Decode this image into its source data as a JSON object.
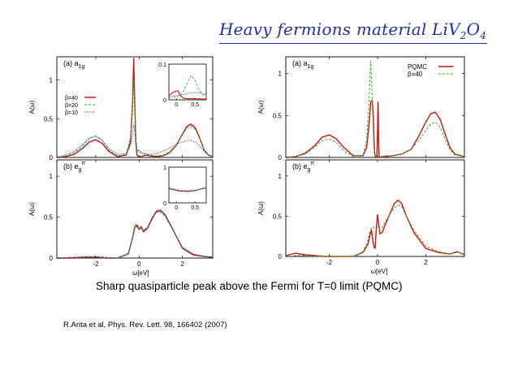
{
  "slide": {
    "title_parts": [
      "Heavy fermions material LiV",
      "2",
      "O",
      "4"
    ],
    "caption": "Sharp quasiparticle peak above the Fermi for T=0 limit (PQMC)",
    "reference": "R.Arita et al, Phys. Rev. Lett. 98, 166402 (2007)"
  },
  "colors": {
    "title": "#1f2fa6",
    "beta40": "#cc1111",
    "beta20": "#22bb22",
    "beta10": "#2233cc",
    "pqmc": "#cc1111"
  },
  "chart_data": [
    {
      "type": "line",
      "panel": "left-top",
      "label": "(a) a",
      "label_sub": "1g",
      "xlabel": "",
      "ylabel": "A(ω)",
      "xlim": [
        -3.8,
        3.4
      ],
      "ylim": [
        0,
        1.3
      ],
      "yticks": [
        "0",
        "0.5",
        "1"
      ],
      "ytick_values": [
        0,
        0.5,
        1
      ],
      "legend": {
        "position": "left-middle",
        "entries": [
          "β=40",
          "β=20",
          "β=10"
        ]
      },
      "series": [
        {
          "name": "β=40",
          "color": "#cc1111",
          "style": "solid",
          "x": [
            -3.8,
            -3.4,
            -3.0,
            -2.6,
            -2.3,
            -2.0,
            -1.7,
            -1.4,
            -1.0,
            -0.6,
            -0.4,
            -0.3,
            -0.25,
            -0.2,
            -0.15,
            -0.1,
            0.0,
            0.1,
            0.3,
            0.5,
            0.8,
            1.1,
            1.4,
            1.7,
            2.0,
            2.2,
            2.4,
            2.6,
            2.8,
            3.0,
            3.2,
            3.4
          ],
          "y": [
            0.0,
            0.01,
            0.04,
            0.12,
            0.2,
            0.23,
            0.18,
            0.08,
            0.01,
            0.03,
            0.2,
            0.7,
            1.28,
            0.7,
            0.2,
            0.03,
            0.005,
            0.01,
            0.03,
            0.02,
            0.01,
            0.02,
            0.06,
            0.15,
            0.3,
            0.4,
            0.43,
            0.38,
            0.25,
            0.1,
            0.03,
            0.01
          ]
        },
        {
          "name": "β=20",
          "color": "#22bb22",
          "style": "dashed",
          "x": [
            -3.8,
            -3.4,
            -3.0,
            -2.6,
            -2.3,
            -2.0,
            -1.7,
            -1.4,
            -1.0,
            -0.6,
            -0.4,
            -0.3,
            -0.25,
            -0.2,
            -0.15,
            -0.1,
            0.0,
            0.1,
            0.3,
            0.5,
            0.8,
            1.1,
            1.4,
            1.7,
            2.0,
            2.2,
            2.4,
            2.6,
            2.8,
            3.0,
            3.2,
            3.4
          ],
          "y": [
            0.0,
            0.02,
            0.06,
            0.15,
            0.25,
            0.28,
            0.22,
            0.1,
            0.02,
            0.04,
            0.25,
            0.65,
            1.0,
            0.65,
            0.25,
            0.08,
            0.1,
            0.06,
            0.04,
            0.03,
            0.02,
            0.03,
            0.07,
            0.16,
            0.29,
            0.38,
            0.4,
            0.36,
            0.24,
            0.1,
            0.03,
            0.01
          ]
        },
        {
          "name": "β=10",
          "color": "#2233cc",
          "style": "dotted",
          "x": [
            -3.8,
            -3.4,
            -3.0,
            -2.6,
            -2.3,
            -2.0,
            -1.7,
            -1.4,
            -1.0,
            -0.6,
            -0.4,
            -0.3,
            -0.25,
            -0.2,
            -0.15,
            -0.1,
            0.0,
            0.1,
            0.3,
            0.5,
            0.8,
            1.1,
            1.4,
            1.7,
            2.0,
            2.2,
            2.4,
            2.6,
            2.8,
            3.0,
            3.2,
            3.4
          ],
          "y": [
            0.0,
            0.03,
            0.08,
            0.17,
            0.25,
            0.27,
            0.22,
            0.12,
            0.04,
            0.05,
            0.15,
            0.3,
            0.42,
            0.35,
            0.2,
            0.1,
            0.08,
            0.06,
            0.05,
            0.04,
            0.05,
            0.08,
            0.12,
            0.17,
            0.2,
            0.22,
            0.22,
            0.2,
            0.15,
            0.08,
            0.03,
            0.01
          ]
        }
      ],
      "inset": {
        "xlim": [
          -0.2,
          0.8
        ],
        "ylim": [
          0,
          0.1
        ],
        "xticks": [
          "0",
          "0.5"
        ],
        "xtick_values": [
          0,
          0.5
        ],
        "yticks": [
          "0",
          "0.1"
        ],
        "ytick_values": [
          0,
          0.1
        ],
        "series": [
          {
            "name": "β=40",
            "color": "#cc1111",
            "style": "solid",
            "x": [
              -0.2,
              -0.1,
              0.0,
              0.05,
              0.1,
              0.2,
              0.3,
              0.5,
              0.7,
              0.8
            ],
            "y": [
              0.012,
              0.02,
              0.025,
              0.025,
              0.012,
              0.004,
              0.003,
              0.003,
              0.002,
              0.002
            ]
          },
          {
            "name": "β=20",
            "color": "#22bb22",
            "style": "dashed",
            "x": [
              -0.2,
              -0.1,
              0.0,
              0.1,
              0.2,
              0.3,
              0.4,
              0.5,
              0.6,
              0.7,
              0.8
            ],
            "y": [
              0.006,
              0.007,
              0.008,
              0.01,
              0.025,
              0.05,
              0.068,
              0.055,
              0.03,
              0.015,
              0.01
            ]
          },
          {
            "name": "β=10",
            "color": "#2233cc",
            "style": "dotted",
            "x": [
              -0.2,
              0.0,
              0.2,
              0.4,
              0.6,
              0.8
            ],
            "y": [
              0.01,
              0.012,
              0.015,
              0.02,
              0.02,
              0.015
            ]
          }
        ]
      }
    },
    {
      "type": "line",
      "panel": "left-bottom",
      "label": "(b) e",
      "label_sub": "g",
      "label_sup": "π",
      "xlabel": "ω[eV]",
      "ylabel": "A(ω)",
      "xlim": [
        -3.8,
        3.4
      ],
      "ylim": [
        0,
        1.2
      ],
      "xticks": [
        "-2",
        "0",
        "2"
      ],
      "xtick_values": [
        -2,
        0,
        2
      ],
      "yticks": [
        "0",
        "0.5",
        "1"
      ],
      "ytick_values": [
        0,
        0.5,
        1
      ],
      "series": [
        {
          "name": "β=40",
          "color": "#cc1111",
          "style": "solid",
          "x": [
            -3.8,
            -3.0,
            -2.5,
            -2.0,
            -1.5,
            -1.0,
            -0.5,
            -0.3,
            -0.2,
            -0.1,
            0.0,
            0.1,
            0.2,
            0.4,
            0.6,
            0.8,
            1.0,
            1.2,
            1.5,
            2.0,
            2.5,
            3.0,
            3.4
          ],
          "y": [
            0.0,
            0.0,
            0.01,
            0.01,
            0.0,
            0.0,
            0.05,
            0.25,
            0.38,
            0.4,
            0.35,
            0.38,
            0.32,
            0.37,
            0.48,
            0.57,
            0.58,
            0.53,
            0.38,
            0.12,
            0.04,
            0.02,
            0.01
          ]
        },
        {
          "name": "β=20",
          "color": "#22bb22",
          "style": "dashed",
          "x": [
            -3.8,
            -3.0,
            -2.5,
            -2.0,
            -1.5,
            -1.0,
            -0.5,
            -0.3,
            -0.2,
            -0.1,
            0.0,
            0.1,
            0.2,
            0.4,
            0.6,
            0.8,
            1.0,
            1.2,
            1.5,
            2.0,
            2.5,
            3.0,
            3.4
          ],
          "y": [
            0.0,
            0.01,
            0.02,
            0.02,
            0.01,
            0.0,
            0.05,
            0.25,
            0.4,
            0.42,
            0.37,
            0.39,
            0.34,
            0.38,
            0.49,
            0.56,
            0.56,
            0.51,
            0.37,
            0.13,
            0.05,
            0.02,
            0.01
          ]
        },
        {
          "name": "β=10",
          "color": "#2233cc",
          "style": "dotted",
          "x": [
            -3.8,
            -3.0,
            -2.5,
            -2.0,
            -1.5,
            -1.0,
            -0.5,
            -0.3,
            -0.2,
            -0.1,
            0.0,
            0.1,
            0.2,
            0.4,
            0.6,
            0.8,
            1.0,
            1.2,
            1.5,
            2.0,
            2.5,
            3.0,
            3.4
          ],
          "y": [
            0.0,
            0.01,
            0.01,
            0.01,
            0.0,
            0.0,
            0.06,
            0.24,
            0.36,
            0.38,
            0.35,
            0.37,
            0.33,
            0.38,
            0.5,
            0.58,
            0.59,
            0.53,
            0.38,
            0.13,
            0.05,
            0.02,
            0.01
          ]
        }
      ],
      "inset": {
        "xlim": [
          -0.2,
          0.8
        ],
        "ylim": [
          0,
          1
        ],
        "xticks": [
          "0",
          "0.5"
        ],
        "xtick_values": [
          0,
          0.5
        ],
        "yticks": [
          "0",
          "1"
        ],
        "ytick_values": [
          0,
          1
        ],
        "series": [
          {
            "name": "β=40",
            "color": "#cc1111",
            "style": "solid",
            "x": [
              -0.2,
              0.0,
              0.1,
              0.3,
              0.5,
              0.7,
              0.8
            ],
            "y": [
              0.4,
              0.35,
              0.33,
              0.32,
              0.34,
              0.4,
              0.42
            ]
          },
          {
            "name": "β=20",
            "color": "#22bb22",
            "style": "dashed",
            "x": [
              -0.2,
              0.0,
              0.1,
              0.3,
              0.5,
              0.7,
              0.8
            ],
            "y": [
              0.42,
              0.37,
              0.35,
              0.34,
              0.35,
              0.41,
              0.43
            ]
          },
          {
            "name": "β=10",
            "color": "#2233cc",
            "style": "dotted",
            "x": [
              -0.2,
              0.0,
              0.1,
              0.3,
              0.5,
              0.7,
              0.8
            ],
            "y": [
              0.41,
              0.36,
              0.34,
              0.33,
              0.35,
              0.4,
              0.42
            ]
          }
        ]
      }
    },
    {
      "type": "line",
      "panel": "right-top",
      "label": "(a) a",
      "label_sub": "1g",
      "xlabel": "",
      "ylabel": "A(ω)",
      "xlim": [
        -3.8,
        3.6
      ],
      "ylim": [
        0,
        1.2
      ],
      "yticks": [
        "0",
        "0.5",
        "1"
      ],
      "ytick_values": [
        0,
        0.5,
        1
      ],
      "legend": {
        "position": "top-right",
        "entries": [
          "PQMC",
          "β=40"
        ]
      },
      "series": [
        {
          "name": "PQMC",
          "color": "#cc1111",
          "style": "solid",
          "x": [
            -3.8,
            -3.4,
            -3.0,
            -2.6,
            -2.3,
            -2.0,
            -1.7,
            -1.4,
            -1.0,
            -0.6,
            -0.45,
            -0.35,
            -0.28,
            -0.22,
            -0.18,
            -0.15,
            -0.12,
            -0.09,
            -0.06,
            -0.03,
            0.0,
            0.02,
            0.03,
            0.04,
            0.06,
            0.1,
            0.3,
            0.6,
            1.0,
            1.4,
            1.7,
            2.0,
            2.2,
            2.4,
            2.6,
            2.8,
            3.0,
            3.2,
            3.6
          ],
          "y": [
            0.0,
            0.01,
            0.05,
            0.14,
            0.24,
            0.27,
            0.22,
            0.12,
            0.02,
            0.02,
            0.12,
            0.4,
            0.66,
            0.68,
            0.55,
            0.25,
            0.05,
            0.01,
            0.0,
            0.0,
            0.3,
            0.66,
            0.5,
            0.2,
            0.03,
            0.0,
            0.01,
            0.02,
            0.04,
            0.1,
            0.25,
            0.42,
            0.52,
            0.54,
            0.45,
            0.28,
            0.12,
            0.04,
            0.01
          ]
        },
        {
          "name": "β=40",
          "color": "#22bb22",
          "style": "dashed",
          "x": [
            -3.8,
            -3.4,
            -3.0,
            -2.6,
            -2.3,
            -2.0,
            -1.7,
            -1.4,
            -1.0,
            -0.6,
            -0.45,
            -0.35,
            -0.28,
            -0.22,
            -0.18,
            -0.15,
            -0.1,
            0.0,
            0.1,
            0.3,
            0.6,
            1.0,
            1.4,
            1.7,
            2.0,
            2.2,
            2.4,
            2.6,
            2.8,
            3.0,
            3.2,
            3.6
          ],
          "y": [
            0.0,
            0.01,
            0.04,
            0.12,
            0.2,
            0.22,
            0.18,
            0.08,
            0.01,
            0.03,
            0.2,
            0.7,
            1.15,
            0.75,
            0.35,
            0.12,
            0.03,
            0.005,
            0.01,
            0.02,
            0.02,
            0.04,
            0.1,
            0.2,
            0.32,
            0.4,
            0.42,
            0.36,
            0.22,
            0.09,
            0.03,
            0.01
          ]
        }
      ]
    },
    {
      "type": "line",
      "panel": "right-bottom",
      "label": "(b) e",
      "label_sub": "g",
      "label_sup": "π",
      "xlabel": "ω[eV]",
      "ylabel": "A(ω)",
      "xlim": [
        -3.8,
        3.6
      ],
      "ylim": [
        0,
        1.2
      ],
      "xticks": [
        "-2",
        "0",
        "2"
      ],
      "xtick_values": [
        -2,
        0,
        2
      ],
      "yticks": [
        "0",
        "0.5",
        "1"
      ],
      "ytick_values": [
        0,
        0.5,
        1
      ],
      "series": [
        {
          "name": "PQMC",
          "color": "#cc1111",
          "style": "solid",
          "x": [
            -3.8,
            -3.4,
            -3.0,
            -2.6,
            -2.2,
            -1.8,
            -1.4,
            -1.0,
            -0.6,
            -0.4,
            -0.3,
            -0.25,
            -0.2,
            -0.15,
            -0.1,
            -0.05,
            0.0,
            0.05,
            0.1,
            0.2,
            0.3,
            0.5,
            0.7,
            0.85,
            1.0,
            1.2,
            1.5,
            2.0,
            2.5,
            3.0,
            3.3,
            3.6
          ],
          "y": [
            0.01,
            0.04,
            0.02,
            0.01,
            0.0,
            0.0,
            0.0,
            0.0,
            0.05,
            0.15,
            0.28,
            0.33,
            0.22,
            0.12,
            0.1,
            0.35,
            0.52,
            0.4,
            0.28,
            0.3,
            0.38,
            0.52,
            0.66,
            0.7,
            0.66,
            0.5,
            0.3,
            0.1,
            0.05,
            0.03,
            0.06,
            0.02
          ]
        },
        {
          "name": "β=40",
          "color": "#22bb22",
          "style": "dashed",
          "x": [
            -3.8,
            -3.4,
            -3.0,
            -2.6,
            -2.2,
            -1.8,
            -1.4,
            -1.0,
            -0.6,
            -0.4,
            -0.3,
            -0.2,
            -0.1,
            0.0,
            0.1,
            0.2,
            0.3,
            0.5,
            0.7,
            0.85,
            1.0,
            1.2,
            1.5,
            2.0,
            2.5,
            3.0,
            3.3,
            3.6
          ],
          "y": [
            0.0,
            0.01,
            0.01,
            0.0,
            0.0,
            0.0,
            0.0,
            0.0,
            0.06,
            0.2,
            0.33,
            0.37,
            0.34,
            0.36,
            0.33,
            0.36,
            0.42,
            0.52,
            0.6,
            0.64,
            0.62,
            0.5,
            0.33,
            0.13,
            0.06,
            0.03,
            0.05,
            0.03
          ]
        }
      ]
    }
  ]
}
